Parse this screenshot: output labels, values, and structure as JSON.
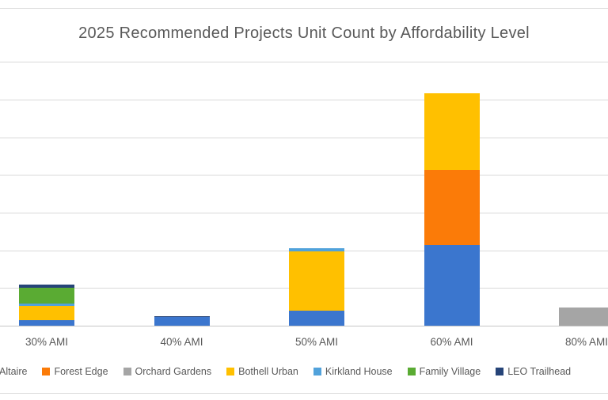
{
  "page": {
    "background": "#ffffff",
    "border_line_color": "#d9d9d9",
    "text_color": "#595959"
  },
  "chart_data": {
    "type": "bar",
    "stacked": true,
    "title": "2025 Recommended Projects Unit Count by Affordability Level",
    "categories": [
      "30% AMI",
      "40% AMI",
      "50% AMI",
      "60% AMI",
      "80% AMI"
    ],
    "series": [
      {
        "name": "Altaire",
        "color": "#3b76ce",
        "values": [
          7,
          12,
          20,
          107,
          0
        ]
      },
      {
        "name": "Forest Edge",
        "color": "#fb7b08",
        "values": [
          0,
          0,
          0,
          100,
          0
        ]
      },
      {
        "name": "Orchard Gardens",
        "color": "#a5a5a5",
        "values": [
          0,
          0,
          0,
          0,
          24
        ]
      },
      {
        "name": "Bothell Urban",
        "color": "#ffc000",
        "values": [
          19,
          0,
          79,
          101,
          0
        ]
      },
      {
        "name": "Kirkland House",
        "color": "#51a2db",
        "values": [
          3,
          0,
          4,
          0,
          0
        ]
      },
      {
        "name": "Family Village",
        "color": "#5aab33",
        "values": [
          21,
          0,
          0,
          0,
          0
        ]
      },
      {
        "name": "LEO Trailhead",
        "color": "#264478",
        "values": [
          5,
          1,
          0,
          0,
          0
        ]
      }
    ],
    "xlabel": "",
    "ylabel": "",
    "ylim": [
      0,
      350
    ],
    "gridline_step": 50,
    "grid": "horizontal",
    "legend_position": "bottom",
    "layout_notes": "y-axis tick labels, left legend swatch, and right edge of 80% AMI bar are cropped out of frame; values estimated from gridlines"
  }
}
